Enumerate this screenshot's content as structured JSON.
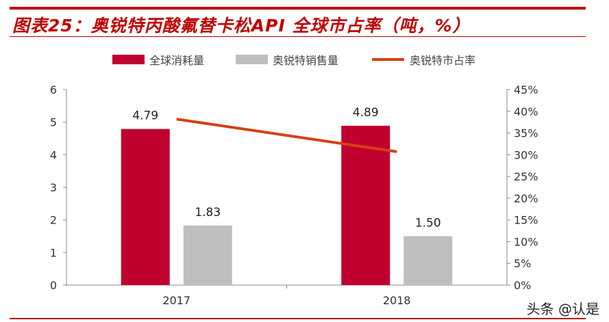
{
  "title": "图表25：奥锐特丙酸氟替卡松API 全球市占率（吨，%）",
  "watermark": "头条 @认是",
  "colors": {
    "accent": "#c00000",
    "bar1": "#c0002f",
    "bar2": "#bfbfbf",
    "line": "#d64012"
  },
  "chart_data": {
    "type": "bar+line",
    "categories": [
      "2017",
      "2018"
    ],
    "series": [
      {
        "name": "全球消耗量",
        "type": "bar",
        "axis": "left",
        "values": [
          4.79,
          4.89
        ],
        "labels": [
          "4.79",
          "4.89"
        ]
      },
      {
        "name": "奥锐特销售量",
        "type": "bar",
        "axis": "left",
        "values": [
          1.83,
          1.5
        ],
        "labels": [
          "1.83",
          "1.50"
        ]
      },
      {
        "name": "奥锐特市占率",
        "type": "line",
        "axis": "right",
        "values": [
          38.2,
          30.7
        ]
      }
    ],
    "ylim_left": [
      0,
      6
    ],
    "yticks_left": [
      "0",
      "1",
      "2",
      "3",
      "4",
      "5",
      "6"
    ],
    "ylim_right": [
      0,
      45
    ],
    "yticks_right": [
      "0%",
      "5%",
      "10%",
      "15%",
      "20%",
      "25%",
      "30%",
      "35%",
      "40%",
      "45%"
    ],
    "legend": "top",
    "grid": false
  }
}
